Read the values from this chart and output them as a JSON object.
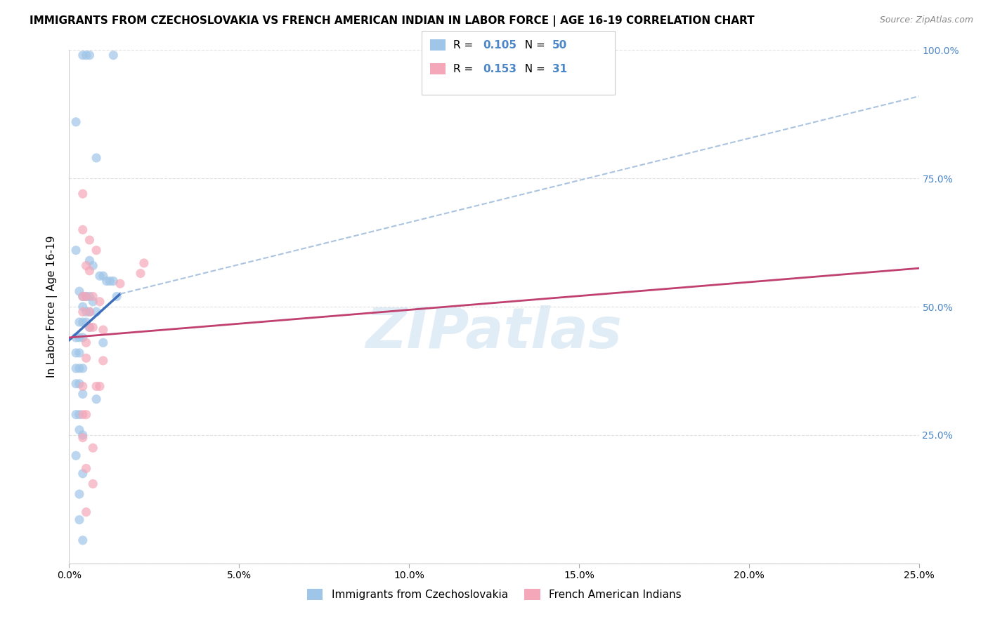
{
  "title": "IMMIGRANTS FROM CZECHOSLOVAKIA VS FRENCH AMERICAN INDIAN IN LABOR FORCE | AGE 16-19 CORRELATION CHART",
  "source": "Source: ZipAtlas.com",
  "ylabel": "In Labor Force | Age 16-19",
  "xlim": [
    0.0,
    0.25
  ],
  "ylim": [
    0.0,
    1.0
  ],
  "xticks": [
    0.0,
    0.05,
    0.1,
    0.15,
    0.2,
    0.25
  ],
  "xtick_labels": [
    "0.0%",
    "5.0%",
    "10.0%",
    "15.0%",
    "20.0%",
    "25.0%"
  ],
  "yticks": [
    0.0,
    0.25,
    0.5,
    0.75,
    1.0
  ],
  "ytick_labels_right": [
    "",
    "25.0%",
    "50.0%",
    "75.0%",
    "100.0%"
  ],
  "blue_scatter": [
    [
      0.004,
      0.99
    ],
    [
      0.005,
      0.99
    ],
    [
      0.006,
      0.99
    ],
    [
      0.013,
      0.99
    ],
    [
      0.002,
      0.86
    ],
    [
      0.008,
      0.79
    ],
    [
      0.002,
      0.61
    ],
    [
      0.006,
      0.59
    ],
    [
      0.007,
      0.58
    ],
    [
      0.009,
      0.56
    ],
    [
      0.01,
      0.56
    ],
    [
      0.011,
      0.55
    ],
    [
      0.012,
      0.55
    ],
    [
      0.013,
      0.55
    ],
    [
      0.003,
      0.53
    ],
    [
      0.004,
      0.52
    ],
    [
      0.005,
      0.52
    ],
    [
      0.006,
      0.52
    ],
    [
      0.007,
      0.51
    ],
    [
      0.004,
      0.5
    ],
    [
      0.005,
      0.49
    ],
    [
      0.006,
      0.49
    ],
    [
      0.008,
      0.49
    ],
    [
      0.003,
      0.47
    ],
    [
      0.004,
      0.47
    ],
    [
      0.005,
      0.47
    ],
    [
      0.006,
      0.46
    ],
    [
      0.002,
      0.44
    ],
    [
      0.003,
      0.44
    ],
    [
      0.004,
      0.44
    ],
    [
      0.002,
      0.41
    ],
    [
      0.003,
      0.41
    ],
    [
      0.002,
      0.38
    ],
    [
      0.003,
      0.38
    ],
    [
      0.004,
      0.38
    ],
    [
      0.002,
      0.35
    ],
    [
      0.003,
      0.35
    ],
    [
      0.004,
      0.33
    ],
    [
      0.008,
      0.32
    ],
    [
      0.002,
      0.29
    ],
    [
      0.003,
      0.29
    ],
    [
      0.003,
      0.26
    ],
    [
      0.004,
      0.25
    ],
    [
      0.002,
      0.21
    ],
    [
      0.004,
      0.175
    ],
    [
      0.003,
      0.135
    ],
    [
      0.003,
      0.085
    ],
    [
      0.004,
      0.045
    ],
    [
      0.01,
      0.43
    ],
    [
      0.014,
      0.52
    ]
  ],
  "pink_scatter": [
    [
      0.004,
      0.72
    ],
    [
      0.004,
      0.65
    ],
    [
      0.006,
      0.63
    ],
    [
      0.008,
      0.61
    ],
    [
      0.005,
      0.58
    ],
    [
      0.006,
      0.57
    ],
    [
      0.004,
      0.52
    ],
    [
      0.005,
      0.52
    ],
    [
      0.007,
      0.52
    ],
    [
      0.009,
      0.51
    ],
    [
      0.004,
      0.49
    ],
    [
      0.006,
      0.49
    ],
    [
      0.006,
      0.46
    ],
    [
      0.007,
      0.46
    ],
    [
      0.005,
      0.43
    ],
    [
      0.005,
      0.4
    ],
    [
      0.004,
      0.345
    ],
    [
      0.008,
      0.345
    ],
    [
      0.009,
      0.345
    ],
    [
      0.004,
      0.29
    ],
    [
      0.005,
      0.29
    ],
    [
      0.004,
      0.245
    ],
    [
      0.007,
      0.225
    ],
    [
      0.005,
      0.185
    ],
    [
      0.007,
      0.155
    ],
    [
      0.005,
      0.1
    ],
    [
      0.01,
      0.455
    ],
    [
      0.01,
      0.395
    ],
    [
      0.015,
      0.545
    ],
    [
      0.021,
      0.565
    ],
    [
      0.022,
      0.585
    ]
  ],
  "blue_solid_line_x": [
    0.0,
    0.015
  ],
  "blue_solid_line_y": [
    0.435,
    0.525
  ],
  "blue_dashed_line_x": [
    0.015,
    0.25
  ],
  "blue_dashed_line_y": [
    0.525,
    0.91
  ],
  "pink_solid_line_x": [
    0.0,
    0.25
  ],
  "pink_solid_line_y": [
    0.44,
    0.575
  ],
  "blue_line_color": "#3d6fbc",
  "blue_dashed_color": "#aac4e0",
  "pink_line_color": "#c04070",
  "scatter_blue_color": "#9fc5e8",
  "scatter_pink_color": "#f4a7b9",
  "scatter_alpha": 0.7,
  "scatter_size": 90,
  "grid_color": "#e0e0e0",
  "bg_color": "#ffffff",
  "watermark": "ZIPatlas",
  "watermark_color": "#c8dff0",
  "axis_right_color": "#4a86c8",
  "title_fontsize": 11,
  "label_fontsize": 10,
  "R1": "0.105",
  "N1": "50",
  "R2": "0.153",
  "N2": "31"
}
